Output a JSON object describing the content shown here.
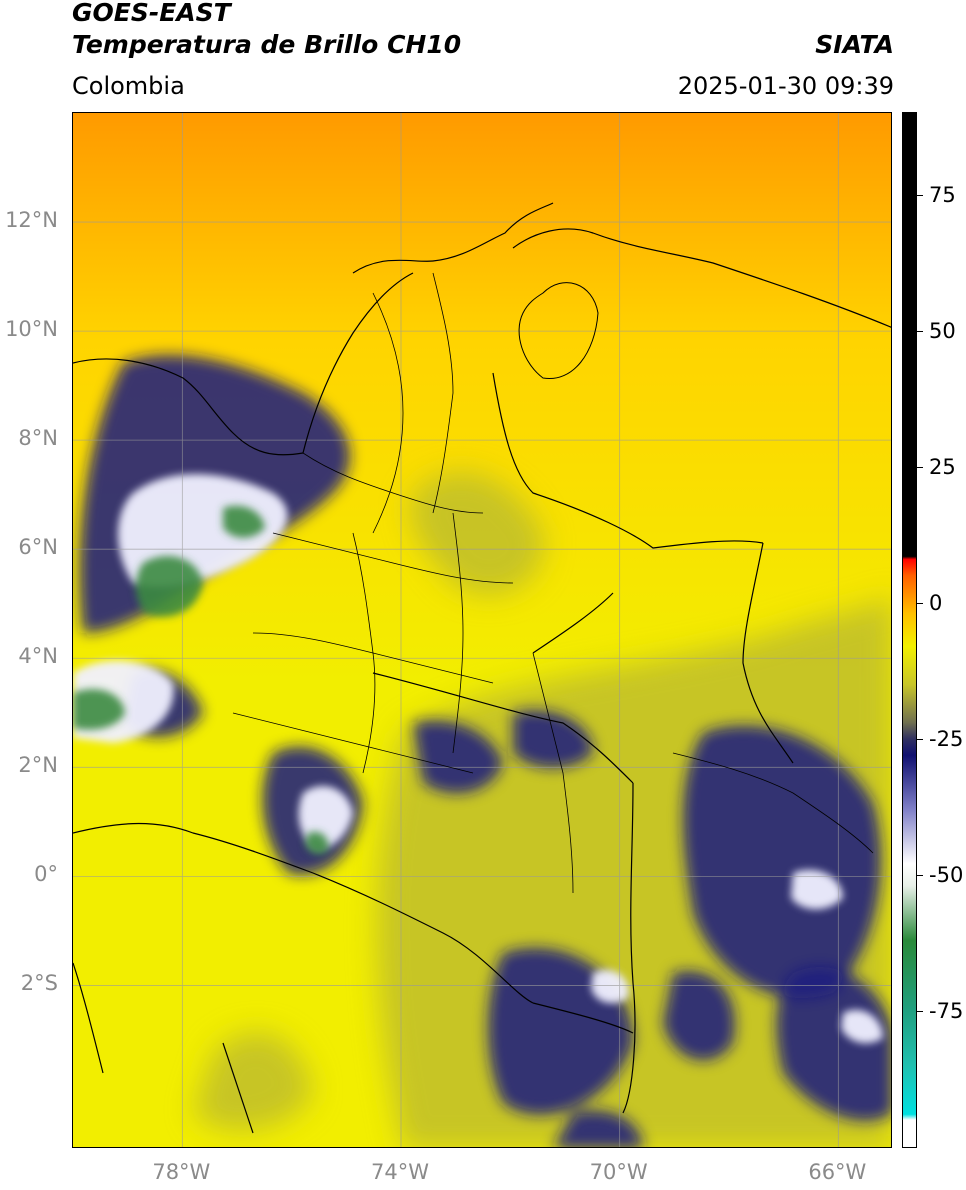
{
  "header": {
    "satellite": "GOES-EAST",
    "product": "Temperatura de Brillo CH10",
    "agency": "SIATA",
    "region": "Colombia",
    "datetime": "2025-01-30 09:39"
  },
  "map": {
    "projection": "PlateCarree",
    "lon_range": [
      -80,
      -65
    ],
    "lat_range": [
      -5,
      14
    ],
    "gridlines": true,
    "lat_ticks": [
      {
        "value": 12,
        "label": "12°N"
      },
      {
        "value": 10,
        "label": "10°N"
      },
      {
        "value": 8,
        "label": "8°N"
      },
      {
        "value": 6,
        "label": "6°N"
      },
      {
        "value": 4,
        "label": "4°N"
      },
      {
        "value": 2,
        "label": "2°N"
      },
      {
        "value": 0,
        "label": "0°"
      },
      {
        "value": -2,
        "label": "2°S"
      }
    ],
    "lon_ticks": [
      {
        "value": -78,
        "label": "78°W"
      },
      {
        "value": -74,
        "label": "74°W"
      },
      {
        "value": -70,
        "label": "70°W"
      },
      {
        "value": -66,
        "label": "66°W"
      }
    ],
    "colors": {
      "warm": "#ff9a00",
      "mild": "#ffd400",
      "cool": "#f2ee00",
      "olive": "#c2c02a",
      "deep_convection": "#1a1a80",
      "cold_white": "#f0f0ff",
      "coldest_green": "#3a8a40",
      "border": "#000000"
    }
  },
  "colorbar": {
    "range": [
      -100,
      90
    ],
    "ticks": [
      {
        "value": 75,
        "label": "75"
      },
      {
        "value": 50,
        "label": "50"
      },
      {
        "value": 25,
        "label": "25"
      },
      {
        "value": 0,
        "label": "0"
      },
      {
        "value": -25,
        "label": "-25"
      },
      {
        "value": -50,
        "label": "-50"
      },
      {
        "value": -75,
        "label": "-75"
      }
    ],
    "stops": [
      {
        "value": -100,
        "color": "#ffffff"
      },
      {
        "value": -95,
        "color": "#ffffff"
      },
      {
        "value": -94,
        "color": "#00e0e0"
      },
      {
        "value": -85,
        "color": "#20c0b0"
      },
      {
        "value": -75,
        "color": "#20a080"
      },
      {
        "value": -62,
        "color": "#2a8a3a"
      },
      {
        "value": -52,
        "color": "#e8f0e8"
      },
      {
        "value": -48,
        "color": "#ffffff"
      },
      {
        "value": -38,
        "color": "#8080c8"
      },
      {
        "value": -28,
        "color": "#101070"
      },
      {
        "value": -25,
        "color": "#303060"
      },
      {
        "value": -22,
        "color": "#707050"
      },
      {
        "value": -15,
        "color": "#c8c628"
      },
      {
        "value": -8,
        "color": "#f2f000"
      },
      {
        "value": -2,
        "color": "#ffc000"
      },
      {
        "value": 5,
        "color": "#ff6000"
      },
      {
        "value": 8,
        "color": "#ff0000"
      },
      {
        "value": 8.5,
        "color": "#000000"
      },
      {
        "value": 90,
        "color": "#000000"
      }
    ]
  }
}
